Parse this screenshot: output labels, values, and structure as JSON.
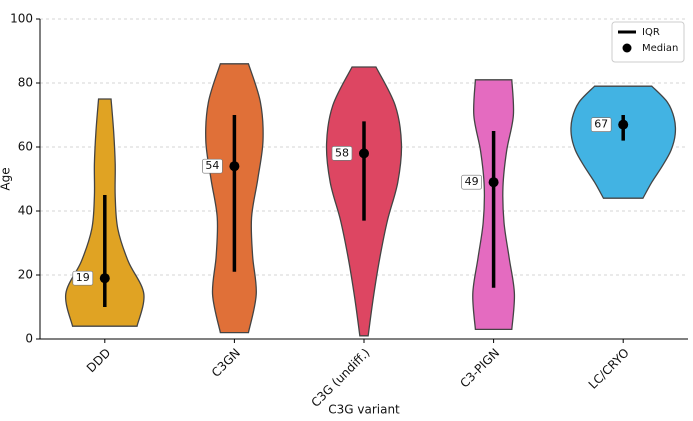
{
  "chart_data": {
    "type": "violin",
    "xlabel": "C3G variant",
    "ylabel": "Age",
    "ylim": [
      0,
      100
    ],
    "yticks": [
      0,
      20,
      40,
      60,
      80,
      100
    ],
    "grid": true,
    "legend": {
      "position": "upper right",
      "entries": [
        "IQR",
        "Median"
      ]
    },
    "categories": [
      "DDD",
      "C3GN",
      "C3G (undiff.)",
      "C3-PIGN",
      "LC/CRYO"
    ],
    "series": [
      {
        "name": "DDD",
        "color": "#e0a323",
        "min": 4,
        "max": 75,
        "q1": 10,
        "q3": 45,
        "median": 19,
        "density": [
          0.62,
          0.75,
          0.45,
          0.25,
          0.2,
          0.2,
          0.17,
          0.12
        ]
      },
      {
        "name": "C3GN",
        "color": "#e07038",
        "min": 2,
        "max": 86,
        "q1": 21,
        "q3": 70,
        "median": 54,
        "density": [
          0.27,
          0.42,
          0.35,
          0.33,
          0.45,
          0.55,
          0.5,
          0.27
        ]
      },
      {
        "name": "C3G (undiff.)",
        "color": "#dd4662",
        "min": 1,
        "max": 85,
        "q1": 37,
        "q3": 68,
        "median": 58,
        "density": [
          0.08,
          0.18,
          0.3,
          0.45,
          0.65,
          0.72,
          0.6,
          0.23
        ]
      },
      {
        "name": "C3-PIGN",
        "color": "#e46bc0",
        "min": 3,
        "max": 81,
        "q1": 16,
        "q3": 65,
        "median": 49,
        "density": [
          0.35,
          0.4,
          0.3,
          0.2,
          0.18,
          0.25,
          0.38,
          0.35
        ]
      },
      {
        "name": "LC/CRYO",
        "color": "#42b3e3",
        "min": 44,
        "max": 79,
        "q1": 62,
        "q3": 70,
        "median": 67,
        "density": [
          0.38,
          0.55,
          0.75,
          0.92,
          1.0,
          0.98,
          0.85,
          0.55
        ]
      }
    ]
  }
}
